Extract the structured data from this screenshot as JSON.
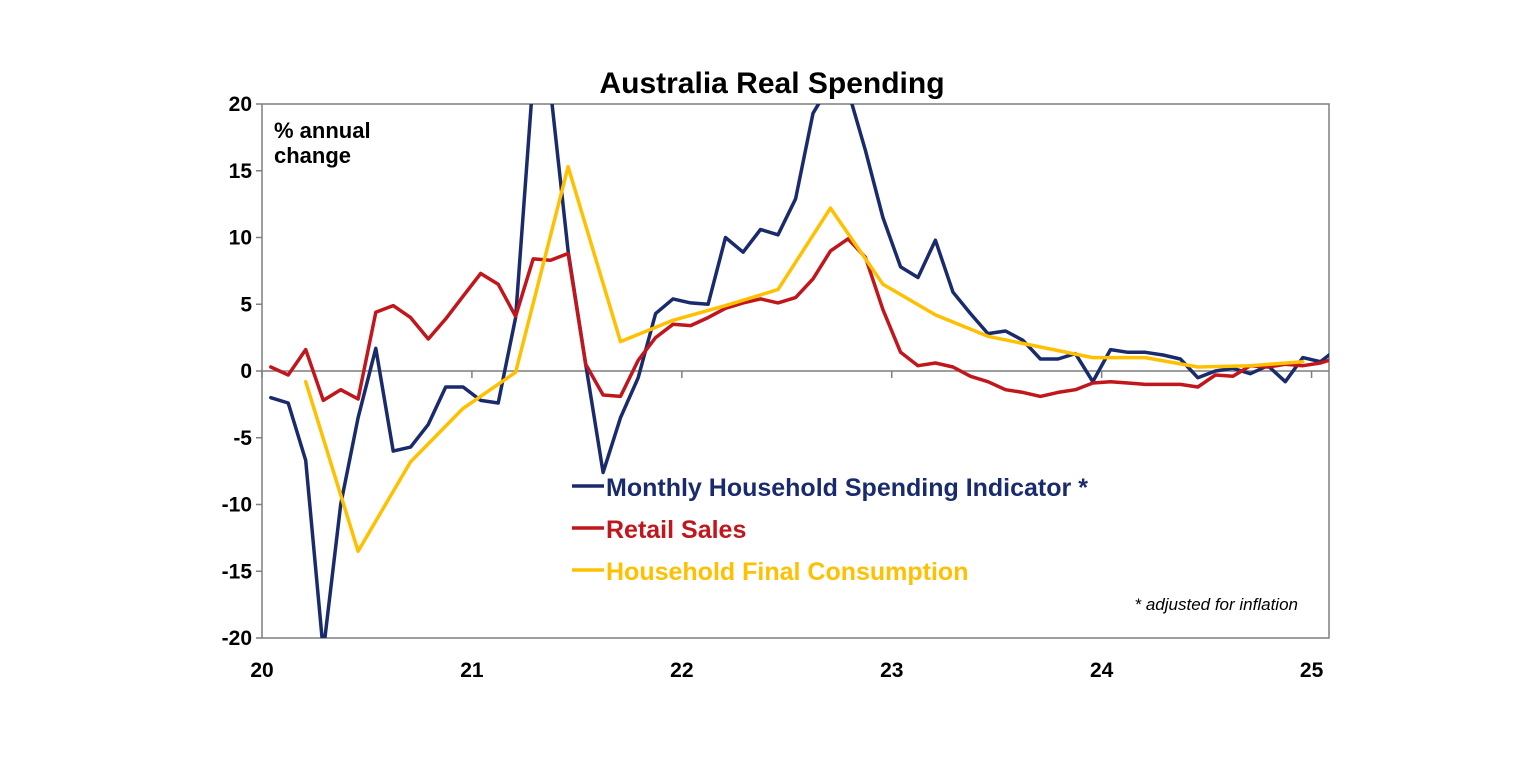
{
  "chart_data": {
    "type": "line",
    "title": "Australia Real Spending",
    "ylabel": "% annual change",
    "ylabel_lines": [
      "% annual",
      "change"
    ],
    "ylim": [
      -20,
      20
    ],
    "yticks": [
      20,
      15,
      10,
      5,
      0,
      -5,
      -10,
      -15,
      -20
    ],
    "x_range": [
      2020.0,
      2025.083
    ],
    "xticks": [
      {
        "value": 2020,
        "label": "20"
      },
      {
        "value": 2021,
        "label": "21"
      },
      {
        "value": 2022,
        "label": "22"
      },
      {
        "value": 2023,
        "label": "23"
      },
      {
        "value": 2024,
        "label": "24"
      },
      {
        "value": 2025,
        "label": "25"
      }
    ],
    "footnote": "* adjusted for inflation",
    "legend_position": "center-bottom",
    "grid": false,
    "series": [
      {
        "name": "Monthly Household Spending Indicator *",
        "color": "#1a2b6d",
        "points": [
          [
            2020.042,
            -2.0
          ],
          [
            2020.125,
            -2.4
          ],
          [
            2020.208,
            -6.7
          ],
          [
            2020.292,
            -21.0
          ],
          [
            2020.375,
            -10.0
          ],
          [
            2020.458,
            -3.5
          ],
          [
            2020.542,
            1.7
          ],
          [
            2020.625,
            -6.0
          ],
          [
            2020.708,
            -5.7
          ],
          [
            2020.792,
            -4.0
          ],
          [
            2020.875,
            -1.2
          ],
          [
            2020.958,
            -1.2
          ],
          [
            2021.042,
            -2.2
          ],
          [
            2021.125,
            -2.4
          ],
          [
            2021.208,
            4.0
          ],
          [
            2021.292,
            22.0
          ],
          [
            2021.375,
            21.0
          ],
          [
            2021.458,
            9.0
          ],
          [
            2021.542,
            0.5
          ],
          [
            2021.625,
            -7.6
          ],
          [
            2021.708,
            -3.5
          ],
          [
            2021.792,
            -0.5
          ],
          [
            2021.875,
            4.3
          ],
          [
            2021.958,
            5.4
          ],
          [
            2022.042,
            5.1
          ],
          [
            2022.125,
            5.0
          ],
          [
            2022.208,
            10.0
          ],
          [
            2022.292,
            8.9
          ],
          [
            2022.375,
            10.6
          ],
          [
            2022.458,
            10.2
          ],
          [
            2022.542,
            12.9
          ],
          [
            2022.625,
            19.3
          ],
          [
            2022.708,
            21.5
          ],
          [
            2022.792,
            21.0
          ],
          [
            2022.875,
            16.5
          ],
          [
            2022.958,
            11.5
          ],
          [
            2023.042,
            7.8
          ],
          [
            2023.125,
            7.0
          ],
          [
            2023.208,
            9.8
          ],
          [
            2023.292,
            5.9
          ],
          [
            2023.375,
            4.3
          ],
          [
            2023.458,
            2.8
          ],
          [
            2023.542,
            3.0
          ],
          [
            2023.625,
            2.3
          ],
          [
            2023.708,
            0.9
          ],
          [
            2023.792,
            0.9
          ],
          [
            2023.875,
            1.3
          ],
          [
            2023.958,
            -0.8
          ],
          [
            2024.042,
            1.6
          ],
          [
            2024.125,
            1.4
          ],
          [
            2024.208,
            1.4
          ],
          [
            2024.292,
            1.2
          ],
          [
            2024.375,
            0.9
          ],
          [
            2024.458,
            -0.5
          ],
          [
            2024.542,
            0.0
          ],
          [
            2024.625,
            0.2
          ],
          [
            2024.708,
            -0.2
          ],
          [
            2024.792,
            0.4
          ],
          [
            2024.875,
            -0.8
          ],
          [
            2024.958,
            1.0
          ],
          [
            2025.042,
            0.7
          ],
          [
            2025.125,
            1.7
          ],
          [
            2025.208,
            0.5
          ],
          [
            2025.292,
            0.9
          ]
        ]
      },
      {
        "name": "Retail Sales",
        "color": "#c0161c",
        "points": [
          [
            2020.042,
            0.3
          ],
          [
            2020.125,
            -0.3
          ],
          [
            2020.208,
            1.6
          ],
          [
            2020.292,
            -2.2
          ],
          [
            2020.375,
            -1.4
          ],
          [
            2020.458,
            -2.1
          ],
          [
            2020.542,
            4.4
          ],
          [
            2020.625,
            4.9
          ],
          [
            2020.708,
            4.0
          ],
          [
            2020.792,
            2.4
          ],
          [
            2020.875,
            3.9
          ],
          [
            2020.958,
            5.6
          ],
          [
            2021.042,
            7.3
          ],
          [
            2021.125,
            6.5
          ],
          [
            2021.208,
            4.1
          ],
          [
            2021.292,
            8.4
          ],
          [
            2021.375,
            8.3
          ],
          [
            2021.458,
            8.8
          ],
          [
            2021.542,
            0.5
          ],
          [
            2021.625,
            -1.8
          ],
          [
            2021.708,
            -1.9
          ],
          [
            2021.792,
            0.8
          ],
          [
            2021.875,
            2.5
          ],
          [
            2021.958,
            3.5
          ],
          [
            2022.042,
            3.4
          ],
          [
            2022.125,
            4.0
          ],
          [
            2022.208,
            4.7
          ],
          [
            2022.292,
            5.1
          ],
          [
            2022.375,
            5.4
          ],
          [
            2022.458,
            5.1
          ],
          [
            2022.542,
            5.5
          ],
          [
            2022.625,
            6.9
          ],
          [
            2022.708,
            9.0
          ],
          [
            2022.792,
            9.9
          ],
          [
            2022.875,
            8.5
          ],
          [
            2022.958,
            4.6
          ],
          [
            2023.042,
            1.4
          ],
          [
            2023.125,
            0.4
          ],
          [
            2023.208,
            0.6
          ],
          [
            2023.292,
            0.3
          ],
          [
            2023.375,
            -0.4
          ],
          [
            2023.458,
            -0.8
          ],
          [
            2023.542,
            -1.4
          ],
          [
            2023.625,
            -1.6
          ],
          [
            2023.708,
            -1.9
          ],
          [
            2023.792,
            -1.6
          ],
          [
            2023.875,
            -1.4
          ],
          [
            2023.958,
            -0.9
          ],
          [
            2024.042,
            -0.8
          ],
          [
            2024.125,
            -0.9
          ],
          [
            2024.208,
            -1.0
          ],
          [
            2024.292,
            -1.0
          ],
          [
            2024.375,
            -1.0
          ],
          [
            2024.458,
            -1.2
          ],
          [
            2024.542,
            -0.3
          ],
          [
            2024.625,
            -0.4
          ],
          [
            2024.708,
            0.4
          ],
          [
            2024.792,
            0.3
          ],
          [
            2024.875,
            0.5
          ],
          [
            2024.958,
            0.4
          ],
          [
            2025.042,
            0.6
          ],
          [
            2025.125,
            1.0
          ],
          [
            2025.208,
            1.3
          ],
          [
            2025.292,
            1.7
          ]
        ]
      },
      {
        "name": "Household Final Consumption",
        "color": "#ffc000",
        "points": [
          [
            2020.208,
            -0.8
          ],
          [
            2020.458,
            -13.5
          ],
          [
            2020.708,
            -6.8
          ],
          [
            2020.958,
            -2.8
          ],
          [
            2021.208,
            -0.1
          ],
          [
            2021.458,
            15.3
          ],
          [
            2021.708,
            2.2
          ],
          [
            2021.958,
            3.8
          ],
          [
            2022.208,
            4.9
          ],
          [
            2022.458,
            6.1
          ],
          [
            2022.708,
            12.2
          ],
          [
            2022.958,
            6.5
          ],
          [
            2023.208,
            4.2
          ],
          [
            2023.458,
            2.6
          ],
          [
            2023.708,
            1.8
          ],
          [
            2023.958,
            1.0
          ],
          [
            2024.208,
            1.0
          ],
          [
            2024.458,
            0.3
          ],
          [
            2024.708,
            0.4
          ],
          [
            2024.958,
            0.7
          ]
        ]
      }
    ]
  }
}
